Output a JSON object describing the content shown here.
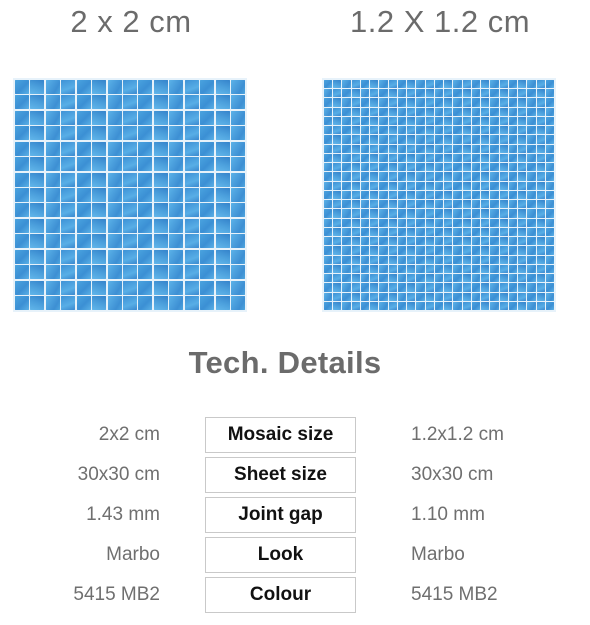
{
  "tiles": {
    "left": {
      "title": "2 x 2 cm"
    },
    "right": {
      "title": "1.2 X 1.2 cm"
    }
  },
  "section_title": "Tech. Details",
  "details": [
    {
      "left": "2x2 cm",
      "label": "Mosaic size",
      "right": "1.2x1.2 cm"
    },
    {
      "left": "30x30 cm",
      "label": "Sheet size",
      "right": "30x30 cm"
    },
    {
      "left": "1.43 mm",
      "label": "Joint gap",
      "right": "1.10 mm"
    },
    {
      "left": "Marbo",
      "label": "Look",
      "right": "Marbo"
    },
    {
      "left": "5415 MB2",
      "label": "Colour",
      "right": "5415 MB2"
    }
  ],
  "colors": {
    "tile_blue": "#4aa3df",
    "grout": "#e7f2fa",
    "heading_gray": "#6b6b6b",
    "value_gray": "#6f6f6f",
    "label_border": "#c9c9c9"
  }
}
